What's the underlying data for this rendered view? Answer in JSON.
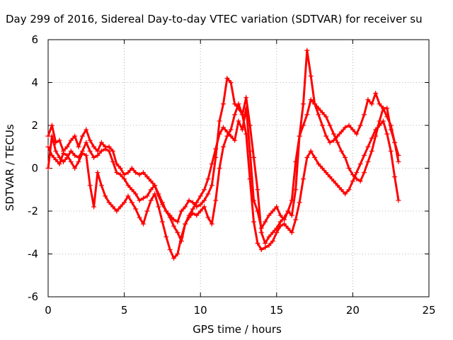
{
  "chart_data": {
    "type": "scatter",
    "title": "Day 299 of 2016, Sidereal Day-to-day VTEC variation (SDTVAR) for receiver su",
    "xlabel": "GPS time / hours",
    "ylabel": "SDTVAR / TECUs",
    "xlim": [
      0,
      25
    ],
    "ylim": [
      -6,
      6
    ],
    "xticks": [
      "0",
      "5",
      "10",
      "15",
      "20",
      "25"
    ],
    "yticks": [
      "6",
      "4",
      "2",
      "0",
      "-2",
      "-4",
      "-6"
    ],
    "grid": true,
    "marker": "+",
    "series": [
      {
        "color": "#ff0000",
        "x": [
          0.0,
          0.25,
          0.5,
          0.75,
          1.0,
          1.25,
          1.5,
          1.75,
          2.0,
          2.25,
          2.5,
          2.75,
          3.0,
          3.25,
          3.5,
          3.75,
          4.0,
          4.25,
          4.5,
          4.75,
          5.0,
          5.25,
          5.5,
          5.75,
          6.0,
          6.25,
          6.5,
          6.75,
          7.0,
          7.25,
          7.5,
          7.75,
          8.0,
          8.25,
          8.5,
          8.75,
          9.0,
          9.25,
          9.5,
          9.75,
          10.0,
          10.25,
          10.5,
          10.75,
          11.0,
          11.25,
          11.5,
          11.75,
          12.0,
          12.25,
          12.5,
          12.75,
          13.0,
          13.25,
          13.5,
          13.75,
          14.0,
          14.25,
          14.5,
          14.75,
          15.0,
          15.25,
          15.5,
          15.75,
          16.0,
          16.25,
          16.5,
          16.75,
          17.0,
          17.25,
          17.5,
          17.75,
          18.0,
          18.25,
          18.5,
          18.75,
          19.0,
          19.25,
          19.5,
          19.75,
          20.0,
          20.25,
          20.5,
          20.75,
          21.0,
          21.25,
          21.5,
          21.75,
          22.0,
          22.25,
          22.5,
          22.75,
          23.0
        ],
        "y": [
          1.5,
          2.0,
          1.2,
          1.3,
          0.8,
          1.0,
          1.3,
          1.5,
          1.0,
          1.5,
          1.8,
          1.3,
          1.0,
          0.8,
          1.2,
          1.0,
          1.0,
          0.8,
          0.2,
          0.0,
          -0.3,
          -0.2,
          0.0,
          -0.2,
          -0.3,
          -0.2,
          -0.4,
          -0.6,
          -0.8,
          -1.2,
          -1.6,
          -2.0,
          -2.3,
          -2.7,
          -3.0,
          -3.4,
          -2.6,
          -2.2,
          -1.9,
          -1.6,
          -1.3,
          -1.0,
          -0.5,
          0.2,
          0.9,
          1.6,
          1.9,
          1.7,
          1.5,
          1.3,
          2.2,
          1.8,
          2.8,
          0.8,
          -1.5,
          -2.0,
          -2.8,
          -2.5,
          -2.2,
          -2.0,
          -1.8,
          -2.2,
          -2.4,
          -2.0,
          -2.2,
          -1.0,
          1.5,
          3.0,
          5.5,
          4.3,
          3.0,
          2.5,
          2.0,
          1.5,
          1.2,
          1.3,
          1.5,
          1.7,
          1.9,
          2.0,
          1.8,
          1.6,
          2.0,
          2.5,
          3.2,
          3.0,
          3.5,
          3.0,
          2.8,
          2.8,
          1.8,
          1.2,
          0.3
        ]
      },
      {
        "color": "#ff0000",
        "x": [
          0.0,
          0.25,
          0.5,
          0.75,
          1.0,
          1.25,
          1.5,
          1.75,
          2.0,
          2.25,
          2.5,
          2.75,
          3.0,
          3.25,
          3.5,
          3.75,
          4.0,
          4.25,
          4.5,
          4.75,
          5.0,
          5.25,
          5.5,
          5.75,
          6.0,
          6.25,
          6.5,
          6.75,
          7.0,
          7.25,
          7.5,
          7.75,
          8.0,
          8.25,
          8.5,
          8.75,
          9.0,
          9.25,
          9.5,
          9.75,
          10.0,
          10.25,
          10.5,
          10.75,
          11.0,
          11.25,
          11.5,
          11.75,
          12.0,
          12.25,
          12.5,
          12.75,
          13.0,
          13.25,
          13.5,
          13.75,
          14.0,
          14.25,
          14.5,
          14.75,
          15.0,
          15.25,
          15.5,
          15.75,
          16.0,
          16.25,
          16.5,
          16.75,
          17.0,
          17.25,
          17.5,
          17.75,
          18.0,
          18.25,
          18.5,
          18.75,
          19.0,
          19.25,
          19.5,
          19.75,
          20.0,
          20.25,
          20.5,
          20.75,
          21.0,
          21.25,
          21.5,
          21.75,
          22.0,
          22.25,
          22.5,
          22.75,
          23.0
        ],
        "y": [
          0.0,
          1.5,
          0.8,
          0.5,
          0.3,
          0.5,
          0.8,
          0.6,
          0.5,
          0.8,
          1.2,
          0.8,
          0.5,
          0.6,
          0.8,
          0.9,
          0.8,
          0.3,
          -0.2,
          -0.3,
          -0.5,
          -0.8,
          -1.0,
          -1.2,
          -1.5,
          -1.4,
          -1.3,
          -1.0,
          -0.8,
          -1.3,
          -1.7,
          -2.0,
          -2.2,
          -2.4,
          -2.5,
          -2.0,
          -1.8,
          -1.5,
          -1.6,
          -1.8,
          -1.7,
          -1.5,
          -1.2,
          -0.8,
          0.5,
          2.2,
          3.0,
          4.2,
          4.0,
          3.0,
          2.8,
          2.5,
          3.3,
          2.0,
          0.5,
          -1.0,
          -3.0,
          -3.5,
          -3.2,
          -3.0,
          -2.8,
          -2.5,
          -2.3,
          -2.0,
          -1.5,
          0.3,
          1.5,
          2.0,
          2.5,
          3.2,
          3.0,
          2.8,
          2.6,
          2.4,
          2.0,
          1.6,
          1.2,
          0.8,
          0.5,
          0.0,
          -0.3,
          -0.5,
          -0.6,
          -0.2,
          0.3,
          0.8,
          1.5,
          2.2,
          2.8,
          2.4,
          2.0,
          1.2,
          0.6
        ]
      },
      {
        "color": "#ff0000",
        "x": [
          0.0,
          0.25,
          0.5,
          0.75,
          1.0,
          1.25,
          1.5,
          1.75,
          2.0,
          2.25,
          2.5,
          2.75,
          3.0,
          3.25,
          3.5,
          3.75,
          4.0,
          4.25,
          4.5,
          4.75,
          5.0,
          5.25,
          5.5,
          5.75,
          6.0,
          6.25,
          6.5,
          6.75,
          7.0,
          7.25,
          7.5,
          7.75,
          8.0,
          8.25,
          8.5,
          8.75,
          9.0,
          9.25,
          9.5,
          9.75,
          10.0,
          10.25,
          10.5,
          10.75,
          11.0,
          11.25,
          11.5,
          11.75,
          12.0,
          12.25,
          12.5,
          12.75,
          13.0,
          13.25,
          13.5,
          13.75,
          14.0,
          14.25,
          14.5,
          14.75,
          15.0,
          15.25,
          15.5,
          15.75,
          16.0,
          16.25,
          16.5,
          16.75,
          17.0,
          17.25,
          17.5,
          17.75,
          18.0,
          18.25,
          18.5,
          18.75,
          19.0,
          19.25,
          19.5,
          19.75,
          20.0,
          20.25,
          20.5,
          20.75,
          21.0,
          21.25,
          21.5,
          21.75,
          22.0,
          22.25,
          22.5,
          22.75,
          23.0
        ],
        "y": [
          1.0,
          0.6,
          0.4,
          0.2,
          0.7,
          0.6,
          0.3,
          0.0,
          0.3,
          0.7,
          0.6,
          -0.8,
          -1.8,
          -0.2,
          -0.8,
          -1.3,
          -1.6,
          -1.8,
          -2.0,
          -1.8,
          -1.6,
          -1.3,
          -1.6,
          -1.9,
          -2.3,
          -2.6,
          -2.0,
          -1.5,
          -1.2,
          -1.8,
          -2.5,
          -3.2,
          -3.8,
          -4.2,
          -4.0,
          -3.2,
          -2.6,
          -2.3,
          -2.1,
          -2.2,
          -2.0,
          -1.8,
          -2.3,
          -2.6,
          -1.5,
          0.0,
          1.0,
          1.5,
          1.8,
          2.5,
          3.0,
          2.5,
          1.6,
          -0.5,
          -2.5,
          -3.5,
          -3.8,
          -3.7,
          -3.6,
          -3.4,
          -3.0,
          -2.7,
          -2.6,
          -2.8,
          -3.0,
          -2.4,
          -1.6,
          -0.5,
          0.5,
          0.8,
          0.5,
          0.2,
          0.0,
          -0.2,
          -0.4,
          -0.6,
          -0.8,
          -1.0,
          -1.2,
          -1.0,
          -0.6,
          -0.2,
          0.2,
          0.6,
          1.0,
          1.4,
          1.8,
          2.0,
          2.2,
          1.6,
          0.8,
          -0.4,
          -1.5
        ]
      }
    ]
  }
}
